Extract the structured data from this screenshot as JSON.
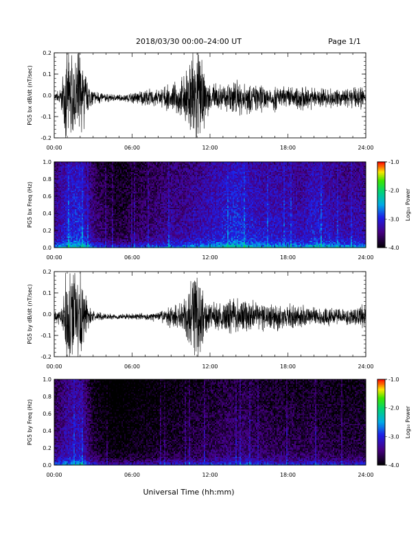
{
  "header": {
    "title": "2018/03/30   00:00–24:00 UT",
    "page": "Page 1/1"
  },
  "xaxis": {
    "label": "Universal Time (hh:mm)",
    "ticks": [
      "00:00",
      "06:00",
      "12:00",
      "18:00",
      "24:00"
    ],
    "range_hours": [
      0,
      24
    ]
  },
  "colorbar": {
    "label": "Log₁₀ Power",
    "ticks": [
      "-1.0",
      "-2.0",
      "-3.0",
      "-4.0"
    ],
    "range": [
      -4.0,
      -1.0
    ]
  },
  "chart_data": [
    {
      "type": "line",
      "ylabel": "PG5 bx dB/dt (nT/sec)",
      "ylim": [
        -0.2,
        0.2
      ],
      "yticks": [
        "0.2",
        "0.1",
        "0.0",
        "-0.1",
        "-0.2"
      ],
      "x_hours": [
        0,
        0.5,
        1.0,
        1.5,
        2.0,
        2.5,
        3,
        4,
        5,
        6,
        7,
        8,
        9,
        10,
        10.5,
        11,
        11.5,
        12,
        13,
        14,
        15,
        16,
        17,
        18,
        19,
        20,
        21,
        22,
        23,
        24
      ],
      "amplitude": [
        0.02,
        0.04,
        0.2,
        0.18,
        0.2,
        0.08,
        0.03,
        0.015,
        0.012,
        0.02,
        0.03,
        0.04,
        0.045,
        0.08,
        0.18,
        0.2,
        0.12,
        0.05,
        0.05,
        0.07,
        0.06,
        0.05,
        0.05,
        0.04,
        0.05,
        0.04,
        0.04,
        0.035,
        0.04,
        0.05
      ]
    },
    {
      "type": "heatmap",
      "ylabel": "PG5 bx Freq (Hz)",
      "ylim": [
        0.0,
        1.0
      ],
      "yticks": [
        "1.0",
        "0.8",
        "0.6",
        "0.4",
        "0.2",
        "0.0"
      ],
      "x_hours": [
        0,
        1,
        2,
        3,
        4,
        5,
        6,
        7,
        8,
        9,
        10,
        11,
        12,
        13,
        14,
        15,
        16,
        17,
        18,
        19,
        20,
        21,
        22,
        23,
        24
      ],
      "mean_log_power": [
        -3.3,
        -3.0,
        -2.9,
        -3.4,
        -3.6,
        -3.7,
        -3.6,
        -3.5,
        -3.4,
        -3.3,
        -3.3,
        -3.2,
        -3.1,
        -3.0,
        -2.9,
        -3.0,
        -3.1,
        -3.1,
        -3.1,
        -3.2,
        -3.0,
        -3.1,
        -3.2,
        -3.2,
        -3.2
      ]
    },
    {
      "type": "line",
      "ylabel": "PG5 by dB/dt (nT/sec)",
      "ylim": [
        -0.2,
        0.2
      ],
      "yticks": [
        "0.2",
        "0.1",
        "0.0",
        "-0.1",
        "-0.2"
      ],
      "x_hours": [
        0,
        0.5,
        1.0,
        1.5,
        2.0,
        2.5,
        3,
        4,
        5,
        6,
        7,
        8,
        9,
        10,
        10.5,
        11,
        11.5,
        12,
        13,
        14,
        15,
        16,
        17,
        18,
        19,
        20,
        21,
        22,
        23,
        24
      ],
      "amplitude": [
        0.02,
        0.03,
        0.2,
        0.2,
        0.2,
        0.07,
        0.02,
        0.012,
        0.01,
        0.012,
        0.015,
        0.02,
        0.04,
        0.07,
        0.12,
        0.2,
        0.1,
        0.05,
        0.06,
        0.07,
        0.07,
        0.05,
        0.06,
        0.05,
        0.04,
        0.04,
        0.035,
        0.03,
        0.035,
        0.05
      ]
    },
    {
      "type": "heatmap",
      "ylabel": "PG5 by Freq (Hz)",
      "ylim": [
        0.0,
        1.0
      ],
      "yticks": [
        "1.0",
        "0.8",
        "0.6",
        "0.4",
        "0.2",
        "0.0"
      ],
      "x_hours": [
        0,
        1,
        2,
        3,
        4,
        5,
        6,
        7,
        8,
        9,
        10,
        11,
        12,
        13,
        14,
        15,
        16,
        17,
        18,
        19,
        20,
        21,
        22,
        23,
        24
      ],
      "mean_log_power": [
        -3.5,
        -3.2,
        -3.1,
        -3.7,
        -3.9,
        -3.95,
        -3.9,
        -3.85,
        -3.8,
        -3.75,
        -3.7,
        -3.65,
        -3.6,
        -3.55,
        -3.5,
        -3.5,
        -3.6,
        -3.6,
        -3.6,
        -3.65,
        -3.6,
        -3.65,
        -3.7,
        -3.7,
        -3.7
      ]
    }
  ]
}
